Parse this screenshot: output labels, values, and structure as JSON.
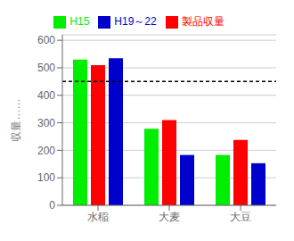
{
  "chart_data": {
    "type": "bar",
    "categories": [
      "水稲",
      "大麦",
      "大豆"
    ],
    "series": [
      {
        "name": "H15",
        "color": "#00ee00",
        "values": [
          530,
          278,
          183
        ]
      },
      {
        "name": "製品収量",
        "color": "#ff0000",
        "values": [
          510,
          310,
          238
        ]
      },
      {
        "name": "H19～22",
        "color": "#0000cc",
        "values": [
          535,
          183,
          153
        ]
      }
    ],
    "y_label": "収量……",
    "ylim": [
      0,
      620
    ],
    "yticks": [
      0,
      100,
      200,
      300,
      400,
      500,
      600
    ],
    "grid": true,
    "legend": "top",
    "reference_lines": [
      {
        "y": 450,
        "color": "#000000",
        "line_style": "dashed"
      }
    ]
  }
}
